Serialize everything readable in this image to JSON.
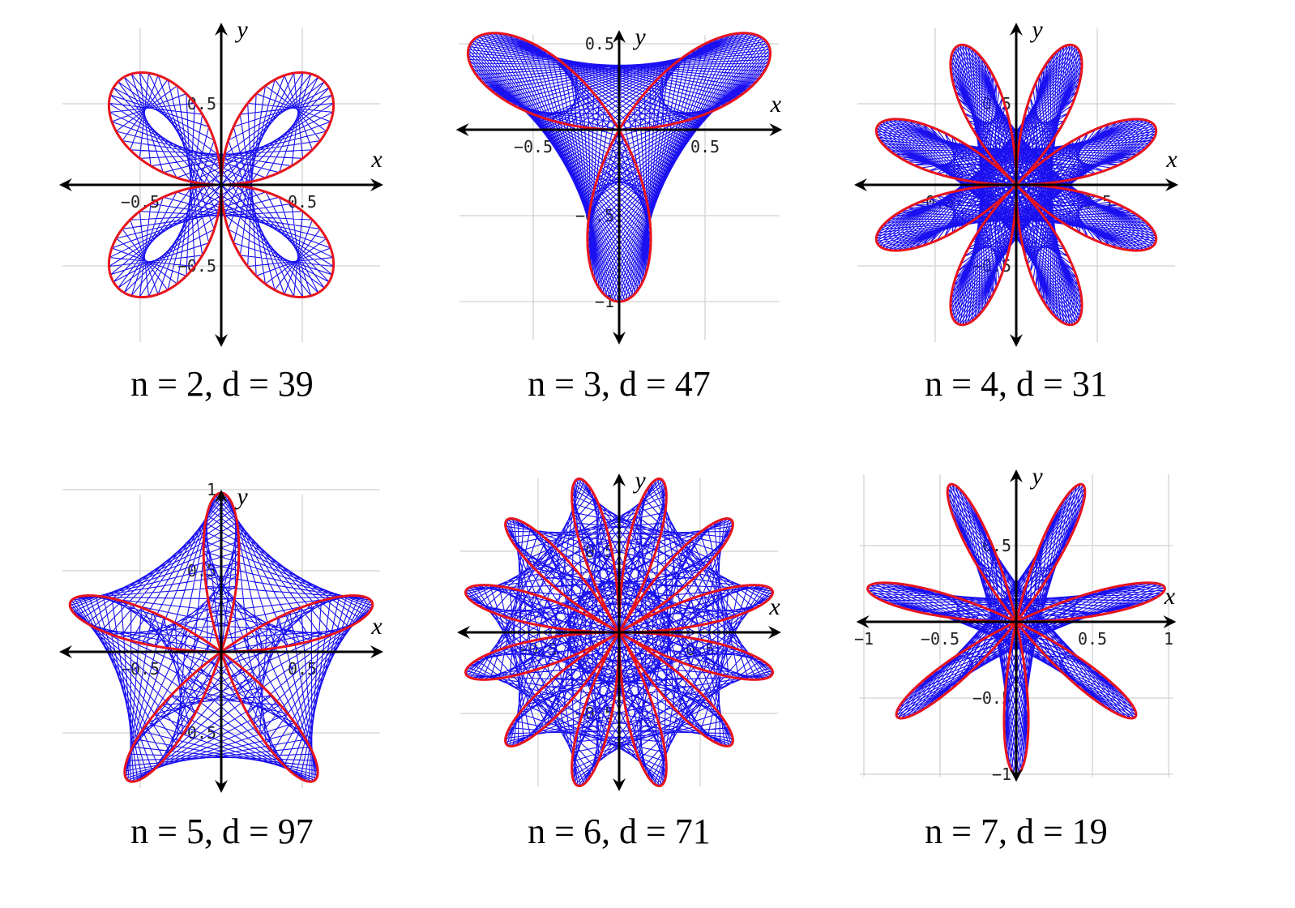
{
  "panels": [
    {
      "n": 2,
      "d": 39,
      "caption": "n = 2, d = 39",
      "axis_x": "x",
      "axis_y": "y",
      "x_ticks": [
        "−0.5",
        "0.5"
      ],
      "y_ticks": [
        "0.5",
        "−0.5"
      ],
      "xlim": [
        -1,
        1
      ],
      "ylim": [
        -1,
        1
      ]
    },
    {
      "n": 3,
      "d": 47,
      "caption": "n = 3, d = 47",
      "axis_x": "x",
      "axis_y": "y",
      "x_ticks": [
        "−0.5",
        "0.5"
      ],
      "y_ticks": [
        "0.5",
        "−0.5",
        "−1"
      ],
      "xlim": [
        -1,
        1
      ],
      "ylim": [
        -1,
        0.5
      ]
    },
    {
      "n": 4,
      "d": 31,
      "caption": "n = 4, d = 31",
      "axis_x": "x",
      "axis_y": "y",
      "x_ticks": [
        "−0.5",
        "0.5"
      ],
      "y_ticks": [
        "0.5",
        "−0.5"
      ],
      "xlim": [
        -1,
        1
      ],
      "ylim": [
        -1,
        1
      ]
    },
    {
      "n": 5,
      "d": 97,
      "caption": "n = 5, d = 97",
      "axis_x": "x",
      "axis_y": "y",
      "x_ticks": [
        "−0.5",
        "0.5"
      ],
      "y_ticks": [
        "1",
        "0.5",
        "−0.5"
      ],
      "xlim": [
        -1,
        1
      ],
      "ylim": [
        -1,
        1
      ]
    },
    {
      "n": 6,
      "d": 71,
      "caption": "n = 6, d = 71",
      "axis_x": "x",
      "axis_y": "y",
      "x_ticks": [
        "−0.5",
        "0.5"
      ],
      "y_ticks": [
        "0.5",
        "−0.5"
      ],
      "xlim": [
        -1,
        1
      ],
      "ylim": [
        -1,
        1
      ]
    },
    {
      "n": 7,
      "d": 19,
      "caption": "n = 7, d = 19",
      "axis_x": "x",
      "axis_y": "y",
      "x_ticks": [
        "−1",
        "−0.5",
        "0.5",
        "1"
      ],
      "y_ticks": [
        "0.5",
        "−0.5",
        "−1"
      ],
      "xlim": [
        -1,
        1
      ],
      "ylim": [
        -1,
        1
      ]
    }
  ],
  "colors": {
    "rose_curve": "#e8141c",
    "maurer_lines": "#1a10f0",
    "axes": "#000000",
    "grid": "#d8d8d8",
    "tick_text": "#222222"
  }
}
